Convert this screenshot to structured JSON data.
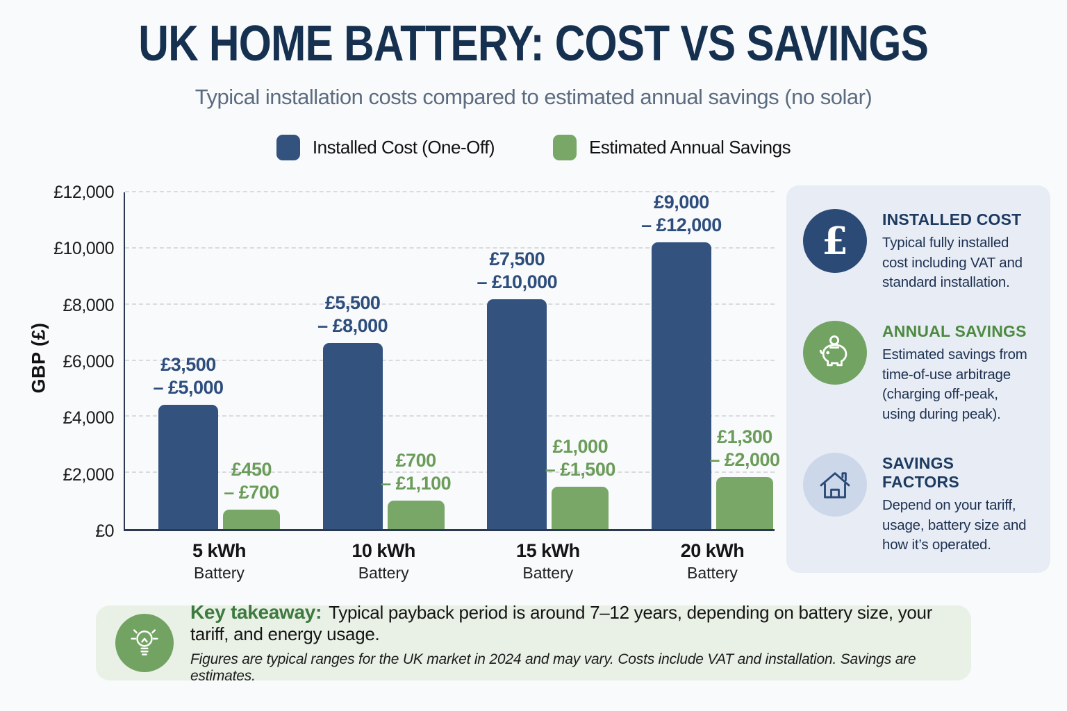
{
  "page": {
    "title": "UK HOME BATTERY: COST VS SAVINGS",
    "subtitle": "Typical installation costs compared to estimated annual savings (no solar)"
  },
  "legend": {
    "cost_label": "Installed Cost (One-Off)",
    "savings_label": "Estimated Annual Savings"
  },
  "colors": {
    "cost_bar": "#33527e",
    "savings_bar": "#78a768",
    "title_navy": "#16304f",
    "subtitle_gray": "#5c6c80",
    "cost_label_text": "#2d4d7c",
    "savings_label_text": "#6b9c59",
    "sidebar_bg": "#e8edf5",
    "takeaway_bg": "#e9f1e6",
    "green_heading": "#4d8a41",
    "takeaway_green": "#3d7a3f"
  },
  "chart_data": {
    "type": "bar",
    "title": "UK Home Battery: Cost vs Savings",
    "subtitle": "Typical installation costs compared to estimated annual savings (no solar)",
    "xlabel": "",
    "ylabel": "GBP (£)",
    "ylim": [
      0,
      12000
    ],
    "ytick_step": 2000,
    "grid": "dashed-horizontal",
    "legend_position": "top",
    "categories": [
      "5 kWh Battery",
      "10 kWh Battery",
      "15 kWh Battery",
      "20 kWh Battery"
    ],
    "series": [
      {
        "name": "Installed Cost (One-Off)",
        "range_labels": [
          "£3,500 – £5,000",
          "£5,500 – £8,000",
          "£7,500 – £10,000",
          "£9,000 – £12,000"
        ],
        "values": [
          4400,
          6600,
          8150,
          10150
        ]
      },
      {
        "name": "Estimated Annual Savings",
        "range_labels": [
          "£450 – £700",
          "£700 – £1,100",
          "£1,000 – £1,500",
          "£1,300 – £2,000"
        ],
        "values": [
          680,
          1000,
          1500,
          1850
        ]
      }
    ]
  },
  "yaxis": {
    "label": "GBP (£)",
    "ticks": [
      "£12,000",
      "£10,000",
      "£8,000",
      "£6,000",
      "£4,000",
      "£2,000",
      "£0"
    ]
  },
  "groups": [
    {
      "name": "5 kWh",
      "sub": "Battery",
      "cost": {
        "value": 4400,
        "l1": "£3,500",
        "l2": "– £5,000"
      },
      "savings": {
        "value": 680,
        "l1": "£450",
        "l2": "– £700"
      }
    },
    {
      "name": "10 kWh",
      "sub": "Battery",
      "cost": {
        "value": 6600,
        "l1": "£5,500",
        "l2": "– £8,000"
      },
      "savings": {
        "value": 1000,
        "l1": "£700",
        "l2": "– £1,100"
      }
    },
    {
      "name": "15 kWh",
      "sub": "Battery",
      "cost": {
        "value": 8150,
        "l1": "£7,500",
        "l2": "– £10,000"
      },
      "savings": {
        "value": 1500,
        "l1": "£1,000",
        "l2": "– £1,500"
      }
    },
    {
      "name": "20 kWh",
      "sub": "Battery",
      "cost": {
        "value": 10150,
        "l1": "£9,000",
        "l2": "– £12,000"
      },
      "savings": {
        "value": 1850,
        "l1": "£1,300",
        "l2": "– £2,000"
      }
    }
  ],
  "sidebar": {
    "cards": [
      {
        "icon": "pound-icon",
        "title": "INSTALLED COST",
        "body": "Typical fully installed cost including VAT and standard installation."
      },
      {
        "icon": "piggy-bank-icon",
        "title": "ANNUAL SAVINGS",
        "body": "Estimated savings from time-of-use arbitrage (charging off-peak, using during peak)."
      },
      {
        "icon": "house-icon",
        "title": "SAVINGS FACTORS",
        "body": "Depend on your tariff, usage, battery size and how it’s operated."
      }
    ]
  },
  "takeaway": {
    "icon": "lightbulb-icon",
    "label": "Key takeaway:",
    "text": "Typical payback period is around 7–12 years, depending on battery size, your tariff, and energy usage.",
    "footnote": "Figures are typical ranges for the UK market in 2024 and may vary. Costs include VAT and installation. Savings are estimates."
  }
}
